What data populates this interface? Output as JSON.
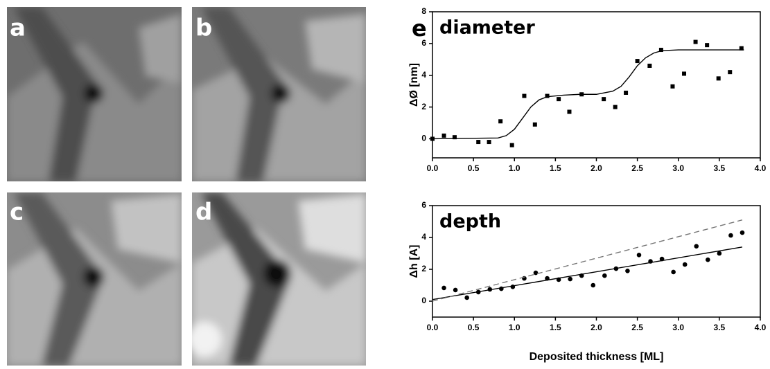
{
  "panels": [
    {
      "label": "a"
    },
    {
      "label": "b"
    },
    {
      "label": "c"
    },
    {
      "label": "d"
    }
  ],
  "chart_data": [
    {
      "type": "scatter",
      "panel_label": "e",
      "title": "diameter",
      "y_label": "ΔØ [nm]",
      "xlim": [
        0,
        4
      ],
      "ylim": [
        -1.2,
        8
      ],
      "xticks": [
        {
          "value": 0,
          "label": "0.0"
        },
        {
          "value": 0.5,
          "label": "0.5"
        },
        {
          "value": 1,
          "label": "1.0"
        },
        {
          "value": 1.5,
          "label": "1.5"
        },
        {
          "value": 2,
          "label": "2.0"
        },
        {
          "value": 2.5,
          "label": "2.5"
        },
        {
          "value": 3,
          "label": "3.0"
        },
        {
          "value": 3.5,
          "label": "3.5"
        },
        {
          "value": 4,
          "label": "4.0"
        }
      ],
      "yticks": [
        0,
        2,
        4,
        6,
        8
      ],
      "series": [
        {
          "mode": "markers",
          "marker": "square",
          "color": "#000000",
          "x": [
            0,
            0.14,
            0.27,
            0.56,
            0.69,
            0.83,
            0.97,
            1.12,
            1.25,
            1.4,
            1.54,
            1.67,
            1.82,
            2.09,
            2.23,
            2.36,
            2.5,
            2.65,
            2.79,
            2.93,
            3.07,
            3.21,
            3.35,
            3.49,
            3.63,
            3.77
          ],
          "values": [
            0,
            0.2,
            0.1,
            -0.2,
            -0.2,
            1.1,
            -0.4,
            2.7,
            0.9,
            2.7,
            2.5,
            1.7,
            2.8,
            2.5,
            2.0,
            2.9,
            4.9,
            4.6,
            5.6,
            3.3,
            4.1,
            6.1,
            5.9,
            3.8,
            4.2,
            5.7
          ]
        },
        {
          "mode": "line",
          "dash": false,
          "color": "#000000",
          "x": [
            0,
            0.8,
            0.9,
            1.0,
            1.1,
            1.2,
            1.3,
            1.4,
            1.6,
            1.8,
            2.0,
            2.2,
            2.3,
            2.4,
            2.5,
            2.6,
            2.7,
            2.8,
            3.0,
            3.8
          ],
          "values": [
            0,
            0.05,
            0.2,
            0.6,
            1.3,
            2.0,
            2.45,
            2.65,
            2.75,
            2.8,
            2.8,
            3.0,
            3.3,
            3.9,
            4.6,
            5.1,
            5.4,
            5.55,
            5.6,
            5.6
          ]
        }
      ]
    },
    {
      "type": "scatter",
      "title": "depth",
      "y_label": "Δh [A]",
      "x_label": "Deposited thickness [ML]",
      "xlim": [
        0,
        4
      ],
      "ylim": [
        -1,
        6
      ],
      "xticks": [
        {
          "value": 0,
          "label": "0.0"
        },
        {
          "value": 0.5,
          "label": "0.5"
        },
        {
          "value": 1,
          "label": "1.0"
        },
        {
          "value": 1.5,
          "label": "1.5"
        },
        {
          "value": 2,
          "label": "2.0"
        },
        {
          "value": 2.5,
          "label": "2.5"
        },
        {
          "value": 3,
          "label": "3.0"
        },
        {
          "value": 3.5,
          "label": "3.5"
        },
        {
          "value": 4,
          "label": "4.0"
        }
      ],
      "yticks": [
        0,
        2,
        4,
        6
      ],
      "series": [
        {
          "mode": "markers",
          "marker": "circle",
          "color": "#000000",
          "x": [
            0.14,
            0.28,
            0.42,
            0.56,
            0.7,
            0.84,
            0.98,
            1.12,
            1.26,
            1.4,
            1.54,
            1.68,
            1.82,
            1.96,
            2.1,
            2.24,
            2.38,
            2.52,
            2.66,
            2.8,
            2.94,
            3.08,
            3.22,
            3.36,
            3.5,
            3.64,
            3.78
          ],
          "values": [
            0.83,
            0.7,
            0.22,
            0.57,
            0.74,
            0.78,
            0.9,
            1.43,
            1.78,
            1.43,
            1.35,
            1.39,
            1.6,
            1.0,
            1.6,
            2.04,
            1.9,
            2.9,
            2.5,
            2.65,
            1.83,
            2.3,
            3.45,
            2.6,
            3.0,
            4.13,
            4.3
          ]
        },
        {
          "mode": "line",
          "dash": false,
          "color": "#000000",
          "x": [
            0,
            3.78
          ],
          "values": [
            0.1,
            3.4
          ]
        },
        {
          "mode": "line",
          "dash": true,
          "color": "#777777",
          "x": [
            0,
            3.78
          ],
          "values": [
            0,
            5.1
          ]
        }
      ]
    }
  ]
}
